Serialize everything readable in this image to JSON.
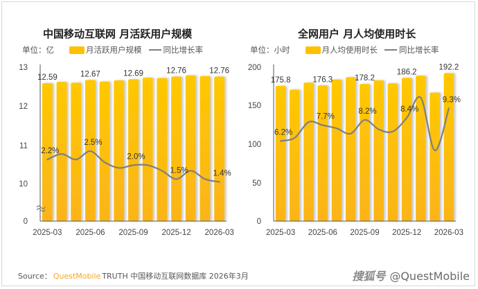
{
  "footer": {
    "source_prefix": "Source：",
    "brand": "QuestMobile",
    "source_text": "TRUTH 中国移动互联网数据库 2026年3月",
    "credit_logo": "搜狐号",
    "credit_handle": "@QuestMobile"
  },
  "colors": {
    "bar": "#ffc000",
    "line": "#7f7f7f",
    "brand": "#f5a623"
  },
  "chart_data": [
    {
      "type": "bar",
      "title": "中国移动互联网 月活跃用户规模",
      "unit_label": "单位：亿",
      "legend": [
        "月活跃用户规模",
        "同比增长率"
      ],
      "legend_placement": "top-left",
      "axis_break": true,
      "yticks": [
        "0",
        "10",
        "11",
        "12",
        "13"
      ],
      "ylim": [
        10,
        13
      ],
      "xtick_labels": [
        "2025-03",
        "2025-06",
        "2025-09",
        "2025-12",
        "2026-03"
      ],
      "categories": [
        "2025-03",
        "2025-04",
        "2025-05",
        "2025-06",
        "2025-07",
        "2025-08",
        "2025-09",
        "2025-10",
        "2025-11",
        "2025-12",
        "2026-01",
        "2026-02",
        "2026-03"
      ],
      "series": [
        {
          "name": "月活跃用户规模",
          "kind": "bar",
          "values": [
            12.59,
            12.62,
            12.6,
            12.67,
            12.63,
            12.66,
            12.69,
            12.73,
            12.72,
            12.76,
            12.79,
            12.77,
            12.76
          ],
          "labels": [
            "12.59",
            "",
            "",
            "12.67",
            "",
            "",
            "12.69",
            "",
            "",
            "12.76",
            "",
            "",
            "12.76"
          ]
        },
        {
          "name": "同比增长率",
          "kind": "line",
          "unit": "%",
          "values": [
            2.2,
            2.4,
            2.2,
            2.5,
            2.1,
            1.9,
            2.0,
            2.0,
            1.8,
            1.5,
            1.8,
            1.5,
            1.4
          ],
          "labels": [
            "2.2%",
            "",
            "",
            "2.5%",
            "",
            "",
            "2.0%",
            "",
            "",
            "1.5%",
            "",
            "",
            "1.4%"
          ],
          "range": [
            0,
            5.5
          ]
        }
      ]
    },
    {
      "type": "bar",
      "title": "全网用户 月人均使用时长",
      "unit_label": "单位：小时",
      "legend": [
        "月人均使用时长",
        "同比增长率"
      ],
      "legend_placement": "top-left",
      "axis_break": false,
      "yticks": [
        "0",
        "50",
        "100",
        "150",
        "200"
      ],
      "ylim": [
        0,
        200
      ],
      "xtick_labels": [
        "2025-03",
        "2025-06",
        "2025-09",
        "2025-12",
        "2026-03"
      ],
      "categories": [
        "2025-03",
        "2025-04",
        "2025-05",
        "2025-06",
        "2025-07",
        "2025-08",
        "2025-09",
        "2025-10",
        "2025-11",
        "2025-12",
        "2026-01",
        "2026-02",
        "2026-03"
      ],
      "series": [
        {
          "name": "月人均使用时长",
          "kind": "bar",
          "values": [
            175.8,
            171.0,
            180.0,
            176.3,
            184.0,
            187.0,
            178.2,
            183.0,
            179.0,
            186.2,
            189.0,
            167.0,
            192.2
          ],
          "labels": [
            "175.8",
            "",
            "",
            "176.3",
            "",
            "",
            "178.2",
            "",
            "",
            "186.2",
            "",
            "",
            "192.2"
          ]
        },
        {
          "name": "同比增长率",
          "kind": "line",
          "unit": "%",
          "values": [
            6.2,
            6.5,
            8.0,
            7.7,
            7.4,
            6.9,
            8.2,
            7.3,
            7.1,
            8.4,
            10.3,
            5.3,
            9.3
          ],
          "labels": [
            "6.2%",
            "",
            "",
            "7.7%",
            "",
            "",
            "8.2%",
            "",
            "",
            "8.4%",
            "",
            "",
            "9.3%"
          ],
          "range": [
            -1.4,
            13.2
          ]
        }
      ]
    }
  ]
}
